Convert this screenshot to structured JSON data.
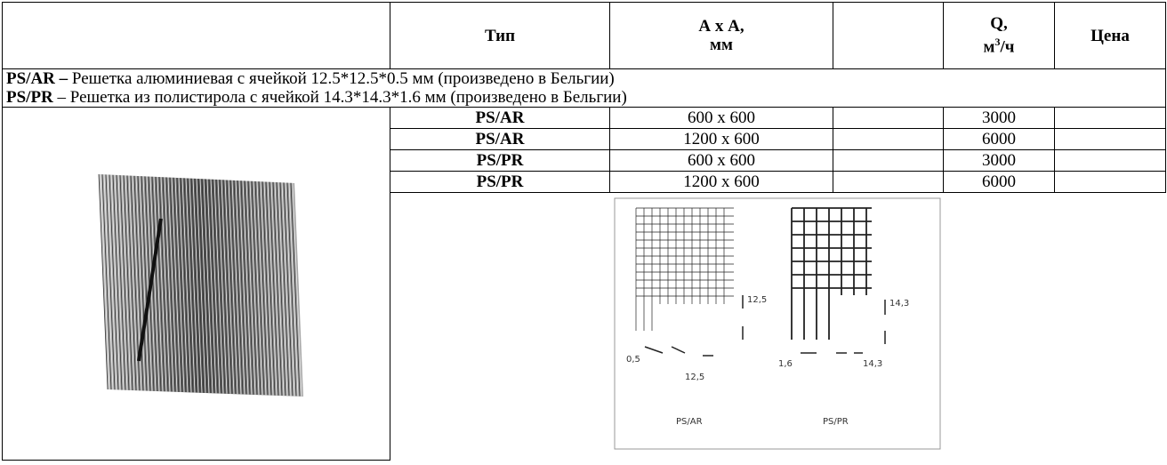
{
  "header": {
    "type": "Тип",
    "size_line1": "А х А,",
    "size_line2": "мм",
    "q_line1": "Q,",
    "q_unit_start": "м",
    "q_unit_sup": "3",
    "q_unit_end": "/ч",
    "price": "Цена"
  },
  "descriptions": [
    {
      "code": "PS/AR –",
      "text": " Решетка алюминиевая с ячейкой 12.5*12.5*0.5 мм  (произведено в Бельгии)"
    },
    {
      "code": "PS/PR",
      "text": " – Решетка из полистирола с ячейкой 14.3*14.3*1.6 мм  (произведено в Бельгии)"
    }
  ],
  "table": {
    "rows": [
      [
        "PS/AR",
        "600 х 600",
        3000
      ],
      [
        "PS/AR",
        "1200 х 600",
        6000
      ],
      [
        "PS/PR",
        "600 х 600",
        3000
      ],
      [
        "PS/PR",
        "1200 х 600",
        6000
      ]
    ]
  },
  "diagram": {
    "ar": {
      "cell": "12,5",
      "thickness": "0,5",
      "pitch": "12,5",
      "label": "PS/AR"
    },
    "pr": {
      "cell": "14,3",
      "thickness": "1,6",
      "pitch": "14,3",
      "label": "PS/PR"
    }
  }
}
